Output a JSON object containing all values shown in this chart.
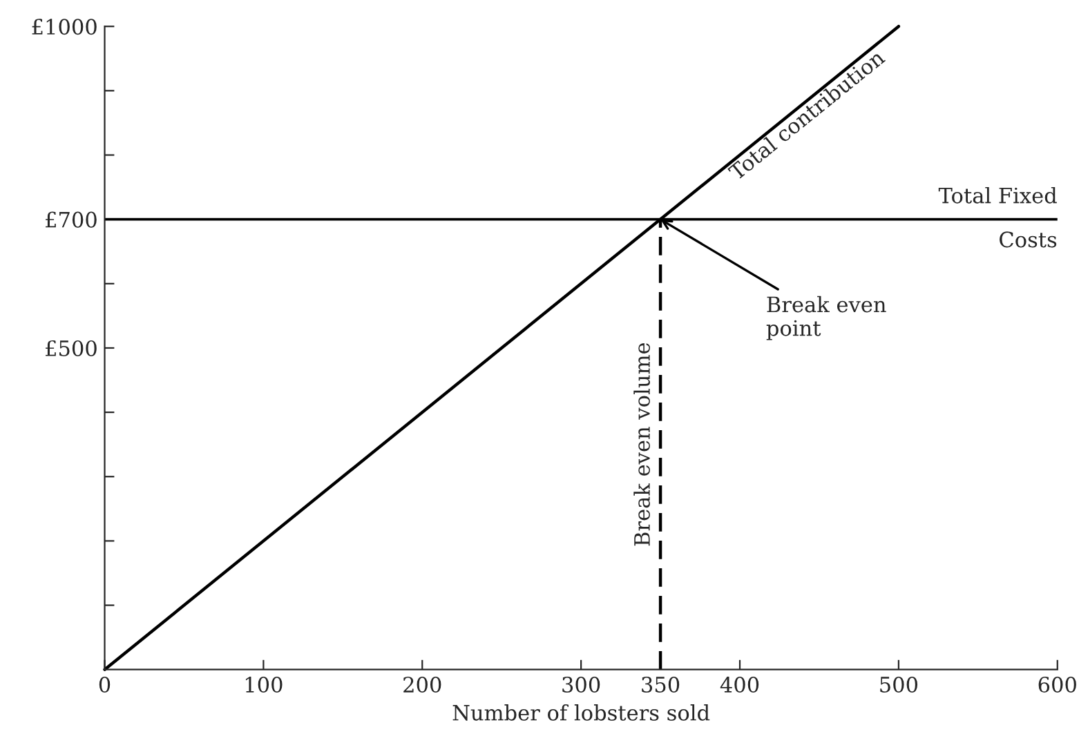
{
  "chart_data": {
    "type": "line",
    "xlabel": "Number of lobsters sold",
    "series": [
      {
        "name": "Total contribution",
        "color": "#000000",
        "x": [
          0,
          500
        ],
        "values": [
          0,
          1000
        ]
      }
    ],
    "xlim": [
      0,
      600
    ],
    "xticks": [
      0,
      100,
      200,
      300,
      350,
      400,
      500,
      600
    ],
    "ylim": [
      0,
      1000
    ],
    "yticks": [
      {
        "value": 100,
        "label": null
      },
      {
        "value": 200,
        "label": null
      },
      {
        "value": 300,
        "label": null
      },
      {
        "value": 400,
        "label": null
      },
      {
        "value": 500,
        "label": "£500"
      },
      {
        "value": 600,
        "label": null
      },
      {
        "value": 700,
        "label": "£700"
      },
      {
        "value": 800,
        "label": null
      },
      {
        "value": 900,
        "label": null
      },
      {
        "value": 1000,
        "label": "£1000"
      }
    ],
    "ref_lines": [
      {
        "axis": "y",
        "value": 700,
        "label": "Total Fixed Costs",
        "color": "#000000",
        "line_style": "solid"
      },
      {
        "axis": "x",
        "value": 350,
        "label": "Break even volume",
        "color": "#000000",
        "line_style": "dashed"
      }
    ],
    "annotations": [
      {
        "text": "Break even point",
        "x": 350,
        "y": 700
      }
    ],
    "grid": false,
    "marker": "none",
    "line_style": "solid"
  }
}
